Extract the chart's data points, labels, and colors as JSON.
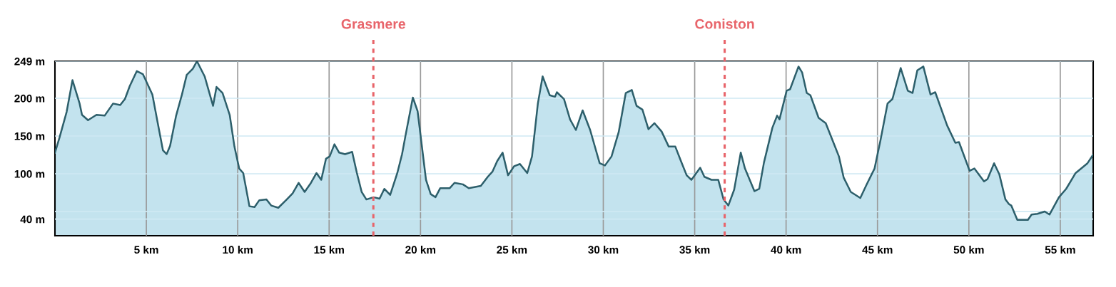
{
  "chart_data": {
    "type": "area",
    "xlim": [
      0,
      56.8
    ],
    "ylim": [
      18,
      249
    ],
    "xticks": [
      {
        "value": 5,
        "label": "5 km"
      },
      {
        "value": 10,
        "label": "10 km"
      },
      {
        "value": 15,
        "label": "15 km"
      },
      {
        "value": 20,
        "label": "20 km"
      },
      {
        "value": 25,
        "label": "25 km"
      },
      {
        "value": 30,
        "label": "30 km"
      },
      {
        "value": 35,
        "label": "35 km"
      },
      {
        "value": 40,
        "label": "40 km"
      },
      {
        "value": 45,
        "label": "45 km"
      },
      {
        "value": 50,
        "label": "50 km"
      },
      {
        "value": 55,
        "label": "55 km"
      }
    ],
    "yticks": [
      {
        "value": 40,
        "label": "40 m"
      },
      {
        "value": 50,
        "label": null
      },
      {
        "value": 100,
        "label": "100 m"
      },
      {
        "value": 150,
        "label": "150 m"
      },
      {
        "value": 200,
        "label": "200 m"
      },
      {
        "value": 249,
        "label": "249 m"
      }
    ],
    "grid": true,
    "ref_lines": [
      {
        "axis": "x",
        "value": 17.42,
        "label": "Grasmere",
        "color": "#e8646a",
        "line_style": "dotted"
      },
      {
        "axis": "x",
        "value": 36.64,
        "label": "Coniston",
        "color": "#e8646a",
        "line_style": "dotted"
      }
    ],
    "series": [
      {
        "color": "#2d5f6b",
        "x": [
          0.0,
          0.25,
          0.64,
          0.96,
          1.35,
          1.48,
          1.81,
          2.27,
          2.72,
          3.18,
          3.57,
          3.83,
          4.09,
          4.48,
          4.81,
          5.33,
          5.65,
          5.91,
          6.11,
          6.3,
          6.63,
          6.95,
          7.21,
          7.54,
          7.77,
          8.19,
          8.65,
          8.84,
          9.17,
          9.56,
          9.82,
          10.08,
          10.3,
          10.64,
          10.92,
          11.18,
          11.57,
          11.83,
          12.22,
          12.68,
          13.0,
          13.33,
          13.66,
          13.98,
          14.31,
          14.57,
          14.83,
          15.03,
          15.29,
          15.55,
          15.87,
          16.26,
          16.52,
          16.78,
          17.04,
          17.43,
          17.76,
          18.02,
          18.34,
          18.73,
          18.99,
          19.19,
          19.58,
          19.84,
          20.3,
          20.56,
          20.82,
          21.08,
          21.6,
          21.86,
          22.32,
          22.64,
          23.3,
          23.68,
          23.94,
          24.2,
          24.49,
          24.79,
          25.12,
          25.44,
          25.84,
          26.1,
          26.42,
          26.68,
          27.07,
          27.36,
          27.46,
          27.85,
          28.18,
          28.5,
          28.87,
          29.28,
          29.8,
          30.09,
          30.45,
          30.84,
          31.23,
          31.56,
          31.82,
          32.14,
          32.47,
          32.8,
          33.19,
          33.58,
          33.94,
          34.23,
          34.56,
          34.82,
          35.3,
          35.53,
          35.92,
          36.29,
          36.58,
          36.84,
          37.16,
          37.52,
          37.75,
          38.27,
          38.53,
          38.79,
          39.25,
          39.51,
          39.64,
          40.03,
          40.22,
          40.68,
          40.88,
          41.13,
          41.33,
          41.78,
          42.17,
          42.63,
          42.89,
          43.15,
          43.54,
          44.06,
          44.39,
          44.84,
          45.17,
          45.55,
          45.82,
          46.27,
          46.66,
          46.92,
          47.18,
          47.51,
          47.9,
          48.16,
          48.81,
          49.26,
          49.46,
          50.04,
          50.3,
          50.83,
          51.02,
          51.38,
          51.67,
          52.0,
          52.19,
          52.32,
          52.65,
          53.23,
          53.43,
          53.75,
          54.15,
          54.41,
          54.93,
          55.32,
          55.84,
          56.49,
          56.79
        ],
        "values": [
          128,
          148,
          182,
          224,
          193,
          178,
          171,
          178,
          177,
          193,
          191,
          199,
          216,
          236,
          232,
          205,
          164,
          131,
          126,
          137,
          177,
          205,
          231,
          239,
          249,
          229,
          190,
          215,
          207,
          178,
          136,
          107,
          101,
          57,
          56,
          65,
          66,
          58,
          55,
          66,
          74,
          88,
          76,
          87,
          101,
          92,
          120,
          123,
          139,
          128,
          126,
          129,
          101,
          76,
          66,
          69,
          67,
          80,
          72,
          101,
          126,
          152,
          201,
          183,
          92,
          73,
          69,
          81,
          81,
          88,
          86,
          81,
          84,
          96,
          103,
          117,
          128,
          98,
          110,
          113,
          101,
          123,
          193,
          229,
          204,
          202,
          208,
          199,
          172,
          158,
          184,
          158,
          114,
          111,
          123,
          155,
          207,
          211,
          190,
          185,
          159,
          167,
          156,
          136,
          136,
          118,
          98,
          92,
          108,
          96,
          92,
          92,
          66,
          58,
          79,
          128,
          107,
          77,
          80,
          115,
          161,
          177,
          172,
          210,
          212,
          242,
          234,
          207,
          204,
          174,
          167,
          139,
          123,
          95,
          76,
          68,
          85,
          107,
          145,
          193,
          199,
          240,
          210,
          207,
          237,
          242,
          205,
          208,
          164,
          141,
          142,
          104,
          107,
          90,
          93,
          114,
          99,
          66,
          60,
          58,
          39,
          39,
          46,
          47,
          50,
          46,
          69,
          80,
          101,
          114,
          125
        ]
      }
    ]
  }
}
